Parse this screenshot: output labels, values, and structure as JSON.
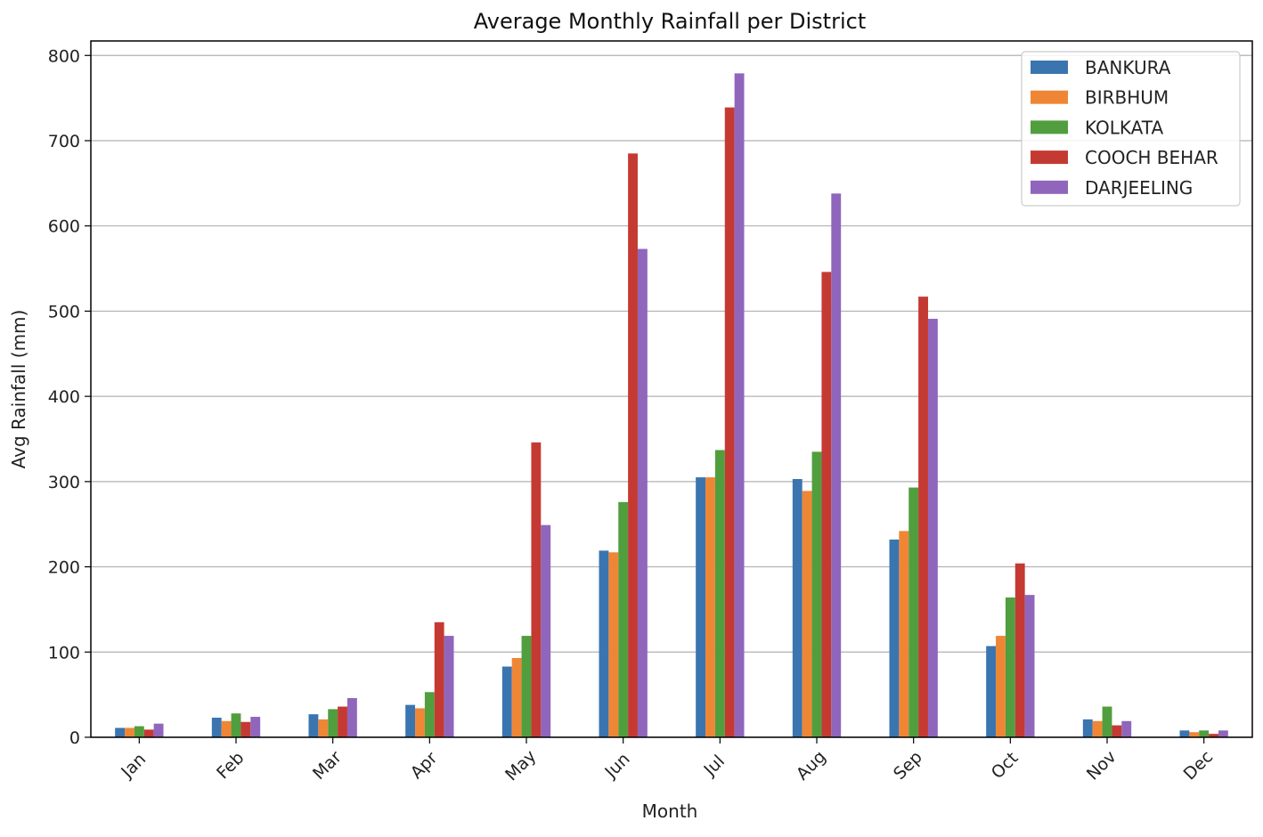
{
  "chart_data": {
    "type": "bar",
    "title": "Average Monthly Rainfall per District",
    "xlabel": "Month",
    "ylabel": "Avg Rainfall (mm)",
    "ylim": [
      0,
      817
    ],
    "yticks": [
      0,
      100,
      200,
      300,
      400,
      500,
      600,
      700,
      800
    ],
    "grid": "horizontal",
    "legend_position": "top-right",
    "categories": [
      "Jan",
      "Feb",
      "Mar",
      "Apr",
      "May",
      "Jun",
      "Jul",
      "Aug",
      "Sep",
      "Oct",
      "Nov",
      "Dec"
    ],
    "series": [
      {
        "name": "BANKURA",
        "color": "#3a75af",
        "values": [
          11,
          23,
          27,
          38,
          83,
          219,
          305,
          303,
          232,
          107,
          21,
          8
        ]
      },
      {
        "name": "BIRBHUM",
        "color": "#ef8636",
        "values": [
          11,
          19,
          21,
          34,
          93,
          217,
          305,
          289,
          242,
          119,
          19,
          6
        ]
      },
      {
        "name": "KOLKATA",
        "color": "#519e3e",
        "values": [
          13,
          28,
          33,
          53,
          119,
          276,
          337,
          335,
          293,
          164,
          36,
          8
        ]
      },
      {
        "name": "COOCH BEHAR",
        "color": "#c43a33",
        "values": [
          9,
          18,
          36,
          135,
          346,
          685,
          739,
          546,
          517,
          204,
          14,
          4
        ]
      },
      {
        "name": "DARJEELING",
        "color": "#9066bc",
        "values": [
          16,
          24,
          46,
          119,
          249,
          573,
          779,
          638,
          491,
          167,
          19,
          8
        ]
      }
    ]
  }
}
